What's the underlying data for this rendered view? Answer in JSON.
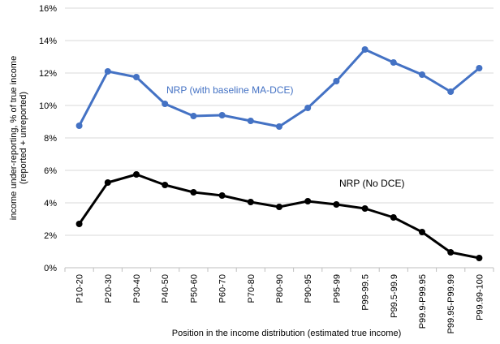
{
  "chart_data": {
    "type": "line",
    "title": "",
    "xlabel": "Position in the income distribution (estimated true income)",
    "ylabel_lines": [
      "income under-reporting, % of true income",
      "(reported + unreported)"
    ],
    "ylim": [
      0,
      16
    ],
    "yticks": [
      0,
      2,
      4,
      6,
      8,
      10,
      12,
      14,
      16
    ],
    "ytick_labels": [
      "0%",
      "2%",
      "4%",
      "6%",
      "8%",
      "10%",
      "12%",
      "14%",
      "16%"
    ],
    "grid": "horizontal",
    "categories": [
      "P10-20",
      "P20-30",
      "P30-40",
      "P40-50",
      "P50-60",
      "P60-70",
      "P70-80",
      "P80-90",
      "P90-95",
      "P95-99",
      "P99-99.5",
      "P99.5-99.9",
      "P99.9-P99.95",
      "P99.95-P99.99",
      "P99.99-100"
    ],
    "series": [
      {
        "name": "NRP (with baseline MA-DCE)",
        "color": "#4472C4",
        "values": [
          8.75,
          12.1,
          11.75,
          10.1,
          9.35,
          9.4,
          9.05,
          8.7,
          9.85,
          11.5,
          13.45,
          12.65,
          11.9,
          10.85,
          12.3
        ]
      },
      {
        "name": "NRP (No DCE)",
        "color": "#000000",
        "values": [
          2.7,
          5.25,
          5.75,
          5.1,
          4.65,
          4.45,
          4.05,
          3.75,
          4.1,
          3.9,
          3.65,
          3.1,
          2.2,
          0.95,
          0.6
        ]
      }
    ]
  }
}
